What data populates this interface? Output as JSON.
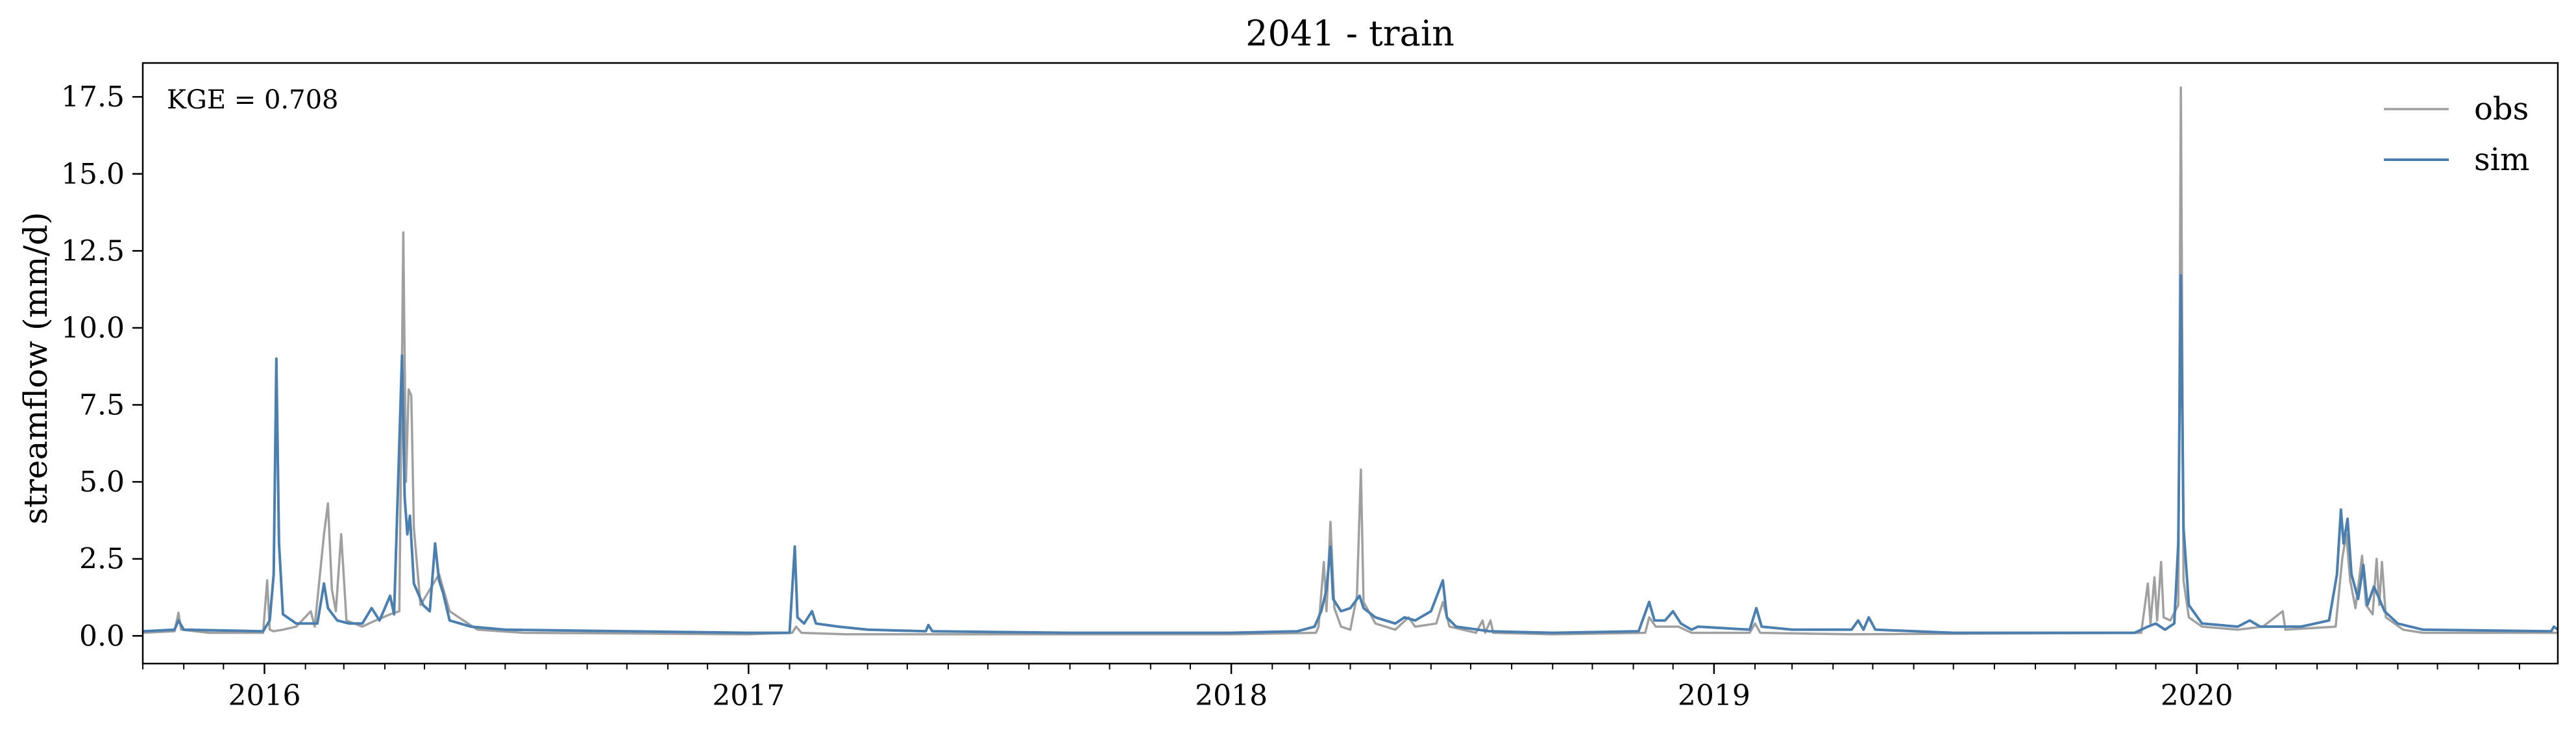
{
  "chart_data": {
    "type": "line",
    "title": "2041 - train",
    "xlabel": "",
    "ylabel": "streamflow (mm/d)",
    "annotation": "KGE = 0.708",
    "x_type": "date",
    "xlim": [
      "2015-10-01",
      "2020-09-30"
    ],
    "ylim": [
      -0.9,
      18.6
    ],
    "x_ticks": [
      "2016-01-01",
      "2017-01-01",
      "2018-01-01",
      "2019-01-01",
      "2020-01-01"
    ],
    "x_tick_labels": [
      "2016",
      "2017",
      "2018",
      "2019",
      "2020"
    ],
    "y_ticks": [
      0,
      2.5,
      5,
      7.5,
      10,
      12.5,
      15,
      17.5
    ],
    "y_tick_labels": [
      "0.0",
      "2.5",
      "5.0",
      "7.5",
      "10.0",
      "12.5",
      "15.0",
      "17.5"
    ],
    "grid": false,
    "legend_position": "top-right",
    "series": [
      {
        "name": "obs",
        "color": "#a0a0a0",
        "points": [
          [
            "2015-10-01",
            0.1
          ],
          [
            "2015-10-25",
            0.15
          ],
          [
            "2015-10-28",
            0.75
          ],
          [
            "2015-10-30",
            0.2
          ],
          [
            "2015-11-20",
            0.1
          ],
          [
            "2015-12-31",
            0.1
          ],
          [
            "2016-01-03",
            1.8
          ],
          [
            "2016-01-05",
            0.2
          ],
          [
            "2016-01-08",
            0.15
          ],
          [
            "2016-01-15",
            0.2
          ],
          [
            "2016-01-25",
            0.3
          ],
          [
            "2016-02-05",
            0.8
          ],
          [
            "2016-02-08",
            0.3
          ],
          [
            "2016-02-15",
            3.3
          ],
          [
            "2016-02-18",
            4.3
          ],
          [
            "2016-02-21",
            1.5
          ],
          [
            "2016-02-24",
            0.8
          ],
          [
            "2016-02-28",
            3.3
          ],
          [
            "2016-03-03",
            0.5
          ],
          [
            "2016-03-15",
            0.3
          ],
          [
            "2016-03-25",
            0.5
          ],
          [
            "2016-04-05",
            0.7
          ],
          [
            "2016-04-12",
            0.8
          ],
          [
            "2016-04-15",
            13.1
          ],
          [
            "2016-04-17",
            5.0
          ],
          [
            "2016-04-19",
            8.0
          ],
          [
            "2016-04-21",
            7.8
          ],
          [
            "2016-04-23",
            3.5
          ],
          [
            "2016-04-28",
            1.0
          ],
          [
            "2016-05-12",
            2.0
          ],
          [
            "2016-05-20",
            0.8
          ],
          [
            "2016-06-10",
            0.2
          ],
          [
            "2016-07-15",
            0.1
          ],
          [
            "2016-12-31",
            0.05
          ],
          [
            "2017-02-03",
            0.1
          ],
          [
            "2017-02-06",
            0.3
          ],
          [
            "2017-02-10",
            0.1
          ],
          [
            "2017-03-15",
            0.05
          ],
          [
            "2017-05-15",
            0.05
          ],
          [
            "2017-12-31",
            0.05
          ],
          [
            "2018-03-06",
            0.1
          ],
          [
            "2018-03-08",
            0.3
          ],
          [
            "2018-03-12",
            2.4
          ],
          [
            "2018-03-14",
            0.8
          ],
          [
            "2018-03-17",
            3.7
          ],
          [
            "2018-03-20",
            0.9
          ],
          [
            "2018-03-25",
            0.3
          ],
          [
            "2018-04-01",
            0.2
          ],
          [
            "2018-04-06",
            1.3
          ],
          [
            "2018-04-09",
            5.4
          ],
          [
            "2018-04-11",
            1.1
          ],
          [
            "2018-04-20",
            0.4
          ],
          [
            "2018-05-05",
            0.2
          ],
          [
            "2018-05-15",
            0.6
          ],
          [
            "2018-05-20",
            0.3
          ],
          [
            "2018-06-05",
            0.4
          ],
          [
            "2018-06-10",
            1.1
          ],
          [
            "2018-06-15",
            0.3
          ],
          [
            "2018-07-05",
            0.1
          ],
          [
            "2018-07-10",
            0.5
          ],
          [
            "2018-07-12",
            0.1
          ],
          [
            "2018-07-16",
            0.5
          ],
          [
            "2018-07-18",
            0.1
          ],
          [
            "2018-09-01",
            0.05
          ],
          [
            "2018-11-10",
            0.1
          ],
          [
            "2018-11-13",
            0.6
          ],
          [
            "2018-11-18",
            0.3
          ],
          [
            "2018-11-25",
            0.3
          ],
          [
            "2018-12-05",
            0.3
          ],
          [
            "2018-12-15",
            0.1
          ],
          [
            "2019-01-28",
            0.1
          ],
          [
            "2019-02-01",
            0.4
          ],
          [
            "2019-02-05",
            0.1
          ],
          [
            "2019-04-15",
            0.05
          ],
          [
            "2019-11-20",
            0.1
          ],
          [
            "2019-11-25",
            1.7
          ],
          [
            "2019-11-27",
            0.4
          ],
          [
            "2019-11-30",
            1.9
          ],
          [
            "2019-12-02",
            0.5
          ],
          [
            "2019-12-05",
            2.4
          ],
          [
            "2019-12-07",
            0.6
          ],
          [
            "2019-12-12",
            0.5
          ],
          [
            "2019-12-18",
            1.0
          ],
          [
            "2019-12-20",
            17.8
          ],
          [
            "2019-12-22",
            1.8
          ],
          [
            "2019-12-26",
            0.6
          ],
          [
            "2020-01-05",
            0.3
          ],
          [
            "2020-02-01",
            0.2
          ],
          [
            "2020-02-20",
            0.3
          ],
          [
            "2020-03-06",
            0.8
          ],
          [
            "2020-03-08",
            0.2
          ],
          [
            "2020-04-15",
            0.3
          ],
          [
            "2020-04-20",
            2.5
          ],
          [
            "2020-04-23",
            3.3
          ],
          [
            "2020-04-26",
            1.8
          ],
          [
            "2020-04-30",
            0.9
          ],
          [
            "2020-05-05",
            2.6
          ],
          [
            "2020-05-08",
            1.0
          ],
          [
            "2020-05-13",
            0.7
          ],
          [
            "2020-05-16",
            2.5
          ],
          [
            "2020-05-18",
            1.0
          ],
          [
            "2020-05-20",
            2.4
          ],
          [
            "2020-05-23",
            0.6
          ],
          [
            "2020-06-05",
            0.2
          ],
          [
            "2020-06-20",
            0.1
          ],
          [
            "2020-09-30",
            0.1
          ]
        ]
      },
      {
        "name": "sim",
        "color": "#4a7fb0",
        "points": [
          [
            "2015-10-01",
            0.15
          ],
          [
            "2015-10-25",
            0.2
          ],
          [
            "2015-10-28",
            0.5
          ],
          [
            "2015-11-01",
            0.2
          ],
          [
            "2015-12-31",
            0.15
          ],
          [
            "2016-01-05",
            0.5
          ],
          [
            "2016-01-08",
            2.0
          ],
          [
            "2016-01-10",
            9.0
          ],
          [
            "2016-01-12",
            3.0
          ],
          [
            "2016-01-15",
            0.7
          ],
          [
            "2016-01-25",
            0.4
          ],
          [
            "2016-02-10",
            0.4
          ],
          [
            "2016-02-15",
            1.7
          ],
          [
            "2016-02-18",
            0.9
          ],
          [
            "2016-02-25",
            0.5
          ],
          [
            "2016-03-05",
            0.4
          ],
          [
            "2016-03-15",
            0.4
          ],
          [
            "2016-03-22",
            0.9
          ],
          [
            "2016-03-28",
            0.5
          ],
          [
            "2016-04-05",
            1.3
          ],
          [
            "2016-04-08",
            0.7
          ],
          [
            "2016-04-14",
            9.1
          ],
          [
            "2016-04-16",
            4.5
          ],
          [
            "2016-04-18",
            3.3
          ],
          [
            "2016-04-20",
            3.9
          ],
          [
            "2016-04-23",
            1.7
          ],
          [
            "2016-04-30",
            1.0
          ],
          [
            "2016-05-05",
            0.8
          ],
          [
            "2016-05-09",
            3.0
          ],
          [
            "2016-05-12",
            1.8
          ],
          [
            "2016-05-15",
            1.4
          ],
          [
            "2016-05-20",
            0.5
          ],
          [
            "2016-06-05",
            0.3
          ],
          [
            "2016-07-01",
            0.2
          ],
          [
            "2016-10-01",
            0.15
          ],
          [
            "2016-12-31",
            0.1
          ],
          [
            "2017-02-01",
            0.1
          ],
          [
            "2017-02-05",
            2.9
          ],
          [
            "2017-02-07",
            0.6
          ],
          [
            "2017-02-12",
            0.4
          ],
          [
            "2017-02-18",
            0.8
          ],
          [
            "2017-02-21",
            0.4
          ],
          [
            "2017-03-10",
            0.3
          ],
          [
            "2017-04-01",
            0.2
          ],
          [
            "2017-05-15",
            0.15
          ],
          [
            "2017-05-17",
            0.35
          ],
          [
            "2017-05-20",
            0.15
          ],
          [
            "2017-09-01",
            0.1
          ],
          [
            "2017-12-31",
            0.1
          ],
          [
            "2018-02-20",
            0.15
          ],
          [
            "2018-03-05",
            0.3
          ],
          [
            "2018-03-10",
            0.8
          ],
          [
            "2018-03-14",
            1.5
          ],
          [
            "2018-03-17",
            2.9
          ],
          [
            "2018-03-19",
            1.2
          ],
          [
            "2018-03-25",
            0.8
          ],
          [
            "2018-04-01",
            0.9
          ],
          [
            "2018-04-08",
            1.3
          ],
          [
            "2018-04-11",
            0.9
          ],
          [
            "2018-04-20",
            0.6
          ],
          [
            "2018-05-05",
            0.4
          ],
          [
            "2018-05-12",
            0.6
          ],
          [
            "2018-05-20",
            0.5
          ],
          [
            "2018-06-01",
            0.8
          ],
          [
            "2018-06-10",
            1.8
          ],
          [
            "2018-06-13",
            0.6
          ],
          [
            "2018-06-20",
            0.3
          ],
          [
            "2018-07-15",
            0.15
          ],
          [
            "2018-09-01",
            0.1
          ],
          [
            "2018-11-05",
            0.15
          ],
          [
            "2018-11-13",
            1.1
          ],
          [
            "2018-11-17",
            0.5
          ],
          [
            "2018-11-25",
            0.5
          ],
          [
            "2018-12-01",
            0.8
          ],
          [
            "2018-12-07",
            0.4
          ],
          [
            "2018-12-15",
            0.2
          ],
          [
            "2018-12-20",
            0.3
          ],
          [
            "2019-01-28",
            0.2
          ],
          [
            "2019-02-02",
            0.9
          ],
          [
            "2019-02-06",
            0.3
          ],
          [
            "2019-03-01",
            0.2
          ],
          [
            "2019-03-10",
            0.2
          ],
          [
            "2019-04-15",
            0.2
          ],
          [
            "2019-04-20",
            0.5
          ],
          [
            "2019-04-24",
            0.2
          ],
          [
            "2019-04-28",
            0.6
          ],
          [
            "2019-05-03",
            0.2
          ],
          [
            "2019-07-01",
            0.1
          ],
          [
            "2019-11-15",
            0.1
          ],
          [
            "2019-11-25",
            0.3
          ],
          [
            "2019-12-01",
            0.4
          ],
          [
            "2019-12-08",
            0.2
          ],
          [
            "2019-12-15",
            0.4
          ],
          [
            "2019-12-18",
            3.0
          ],
          [
            "2019-12-20",
            11.7
          ],
          [
            "2019-12-22",
            3.5
          ],
          [
            "2019-12-26",
            1.0
          ],
          [
            "2020-01-05",
            0.4
          ],
          [
            "2020-02-01",
            0.3
          ],
          [
            "2020-02-10",
            0.5
          ],
          [
            "2020-02-18",
            0.3
          ],
          [
            "2020-03-20",
            0.3
          ],
          [
            "2020-04-10",
            0.5
          ],
          [
            "2020-04-16",
            2.0
          ],
          [
            "2020-04-19",
            4.1
          ],
          [
            "2020-04-21",
            3.0
          ],
          [
            "2020-04-24",
            3.8
          ],
          [
            "2020-04-27",
            2.0
          ],
          [
            "2020-05-02",
            1.2
          ],
          [
            "2020-05-06",
            2.3
          ],
          [
            "2020-05-09",
            1.0
          ],
          [
            "2020-05-14",
            1.6
          ],
          [
            "2020-05-17",
            1.3
          ],
          [
            "2020-05-22",
            0.8
          ],
          [
            "2020-06-01",
            0.4
          ],
          [
            "2020-06-20",
            0.2
          ],
          [
            "2020-09-25",
            0.15
          ],
          [
            "2020-09-27",
            0.3
          ],
          [
            "2020-09-30",
            0.2
          ]
        ]
      }
    ]
  }
}
